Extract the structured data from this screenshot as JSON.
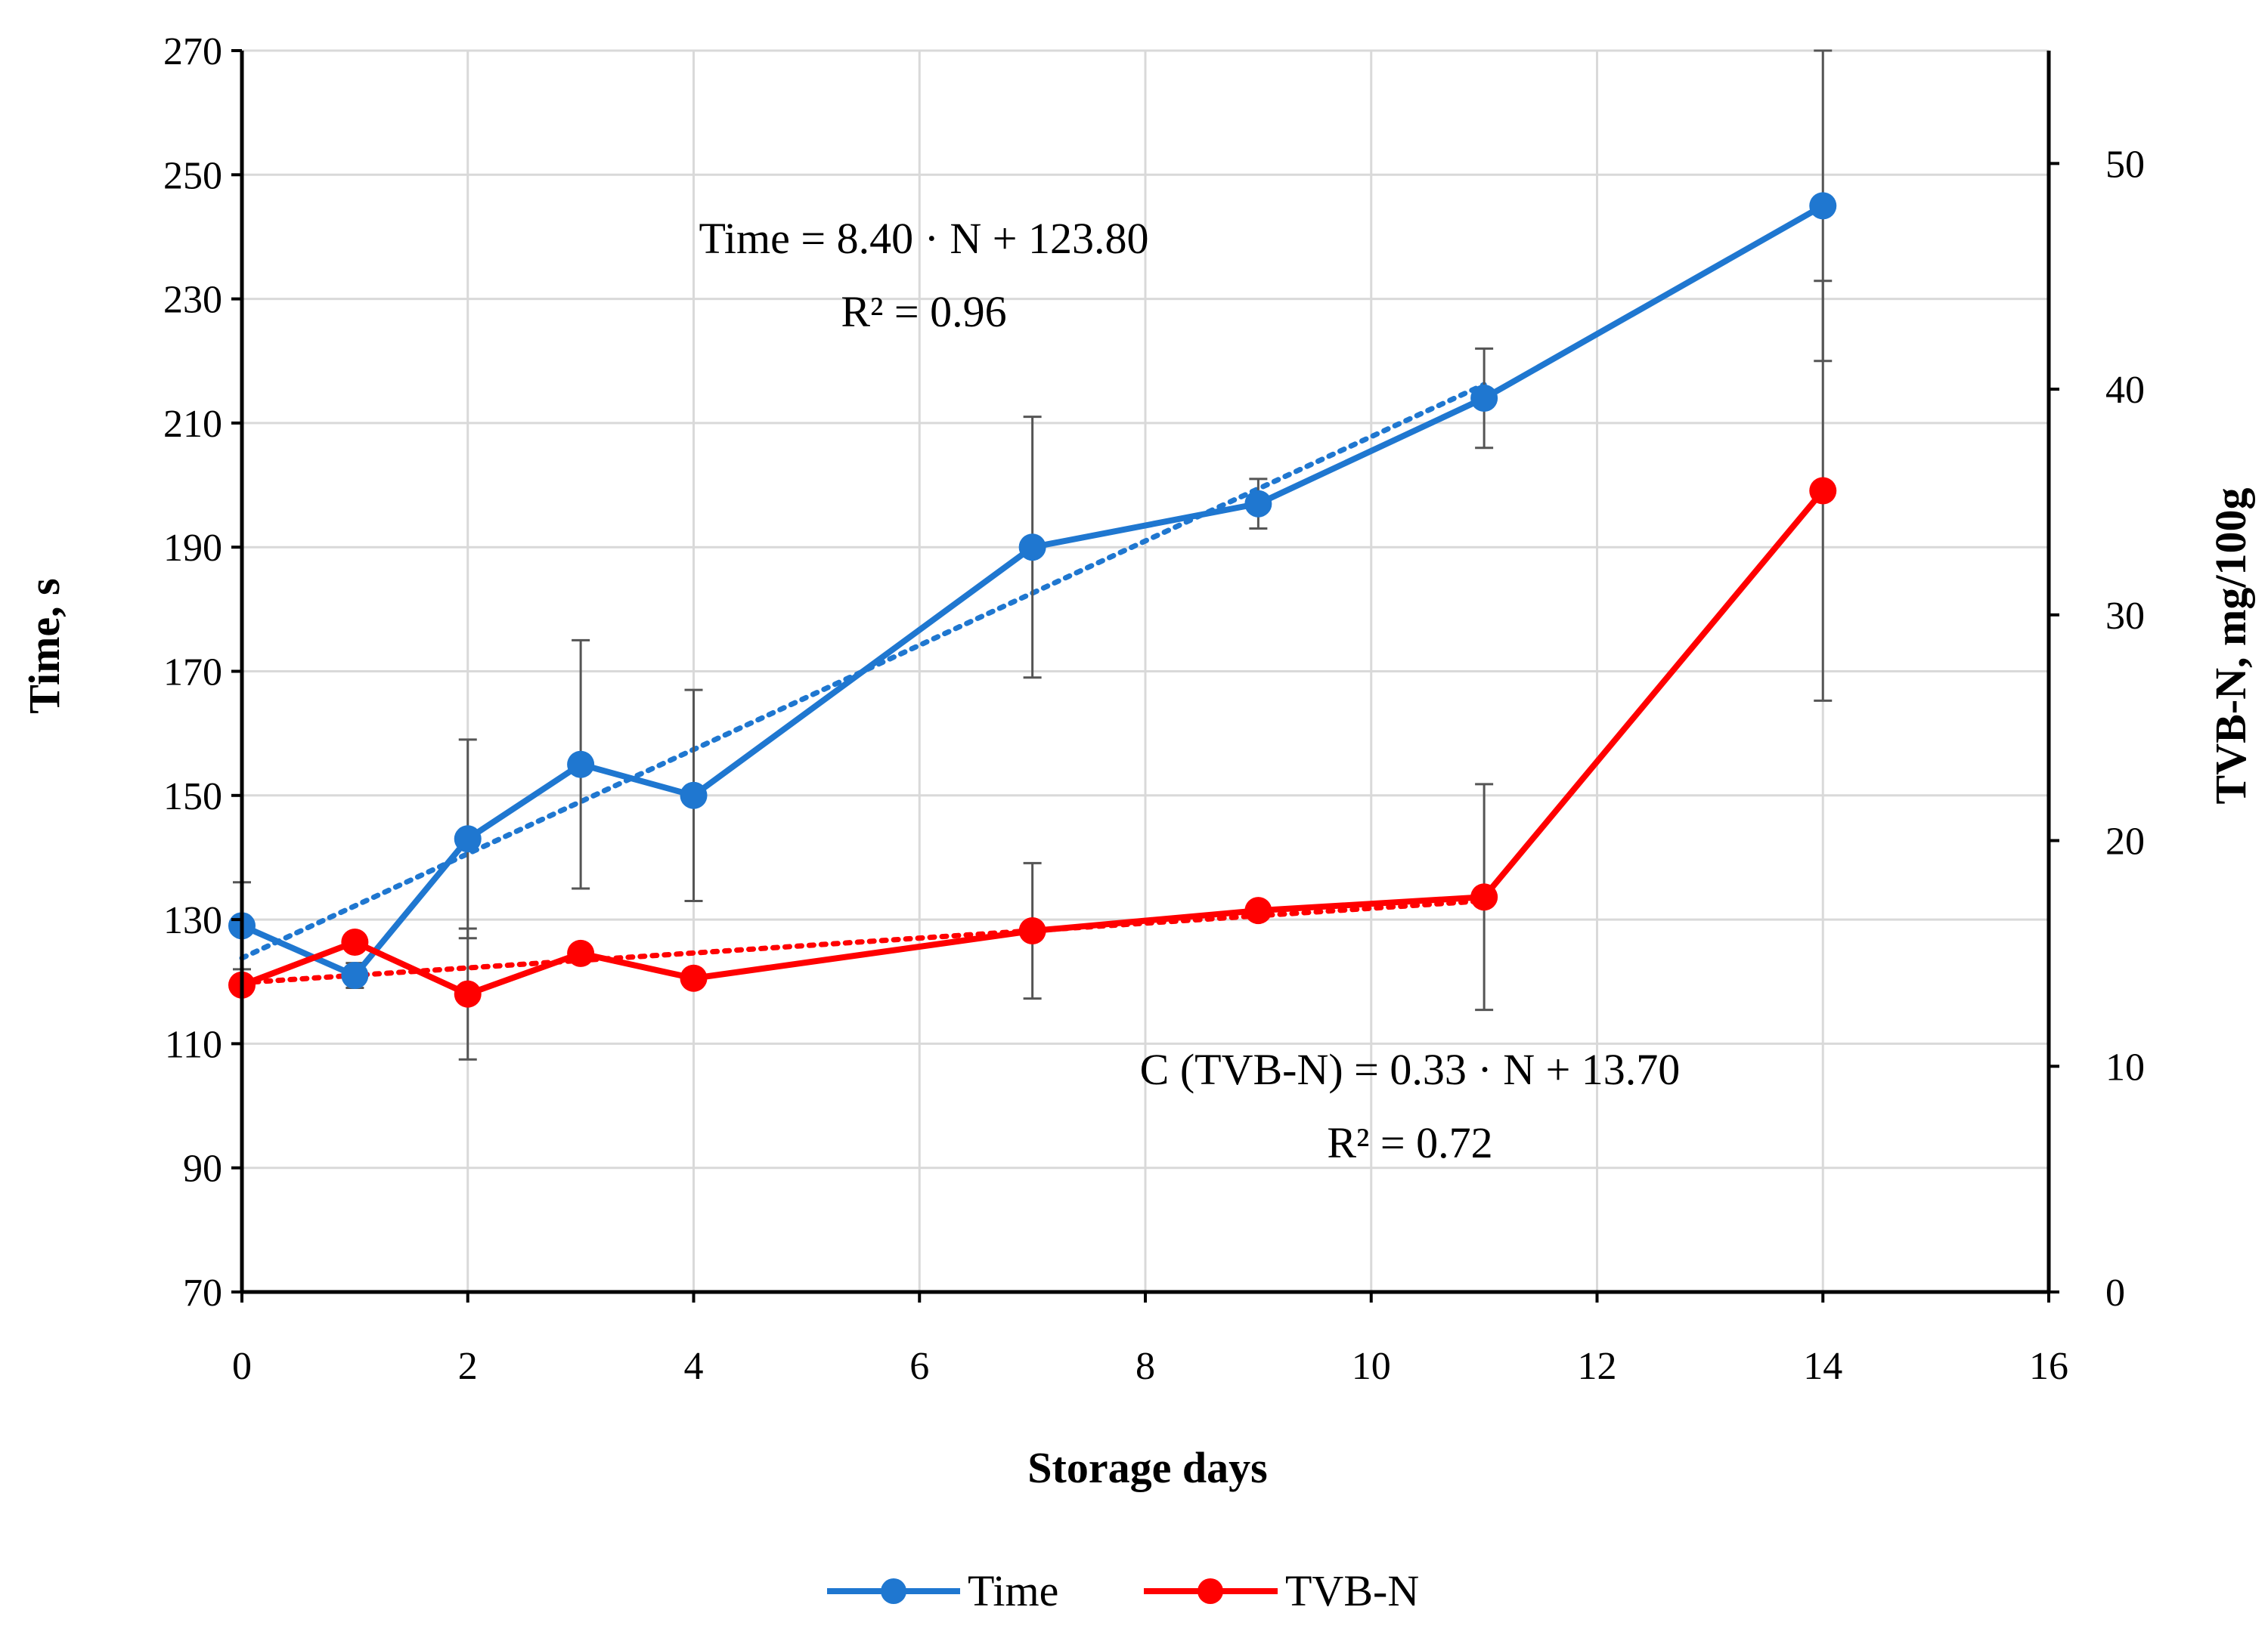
{
  "chart_data": {
    "type": "line",
    "title": "",
    "xlabel": "Storage days",
    "ylabel": "Time, s",
    "y2label": "TVB-N, mg/100g",
    "xlim": [
      0,
      16
    ],
    "ylim": [
      70,
      270
    ],
    "y2lim": [
      0,
      55
    ],
    "x_ticks": [
      0,
      2,
      4,
      6,
      8,
      10,
      12,
      14,
      16
    ],
    "y_ticks": [
      70,
      90,
      110,
      130,
      150,
      170,
      190,
      210,
      230,
      250,
      270
    ],
    "y2_ticks": [
      0,
      10,
      20,
      30,
      40,
      50
    ],
    "grid": true,
    "legend_position": "bottom",
    "series": [
      {
        "name": "Time",
        "axis": "left",
        "color": "#1f77d0",
        "x": [
          0,
          1,
          2,
          3,
          4,
          7,
          9,
          11,
          14
        ],
        "values": [
          129,
          121,
          143,
          155,
          150,
          190,
          197,
          214,
          245
        ],
        "errors": [
          7,
          2,
          16,
          20,
          17,
          21,
          4,
          8,
          25
        ],
        "trendline": {
          "slope": 8.4,
          "intercept": 123.8,
          "x_range": [
            0,
            11
          ]
        }
      },
      {
        "name": "TVB-N",
        "axis": "right",
        "color": "#ff0000",
        "x": [
          0,
          1,
          2,
          3,
          4,
          7,
          9,
          11,
          14
        ],
        "values": [
          13.6,
          15.5,
          13.2,
          15.0,
          13.9,
          16.0,
          16.9,
          17.5,
          35.5
        ],
        "errors": [
          0,
          0,
          2.9,
          0,
          0,
          3.0,
          0,
          5.0,
          9.3
        ],
        "trendline": {
          "slope": 0.33,
          "intercept": 13.7,
          "x_range": [
            0,
            11
          ]
        }
      }
    ],
    "annotations": [
      {
        "series": "Time",
        "equation": "Time = 8.40 · N + 123.80",
        "r2": "R² = 0.96"
      },
      {
        "series": "TVB-N",
        "equation": "C (TVB-N) = 0.33 · N + 13.70",
        "r2": "R² = 0.72"
      }
    ]
  }
}
